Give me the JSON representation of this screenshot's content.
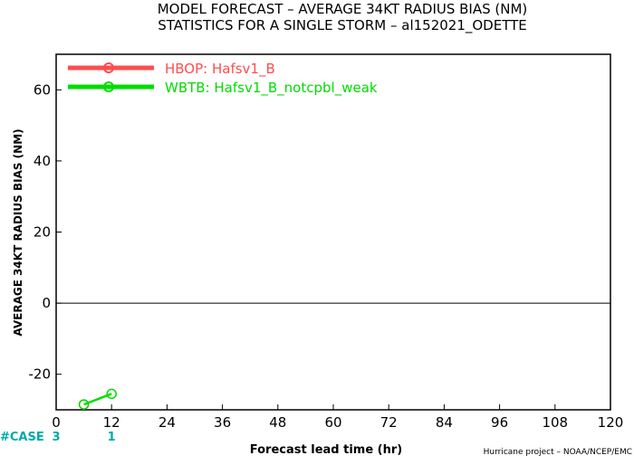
{
  "chart_data": {
    "type": "line",
    "title": "MODEL FORECAST – AVERAGE 34KT RADIUS BIAS (NM)",
    "subtitle": "STATISTICS FOR A SINGLE STORM – al152021_ODETTE",
    "xlabel": "Forecast lead time (hr)",
    "ylabel": "AVERAGE 34KT RADIUS BIAS (NM)",
    "xlim": [
      0,
      120
    ],
    "ylim": [
      -30,
      70
    ],
    "xticks": [
      0,
      12,
      24,
      36,
      48,
      60,
      72,
      84,
      96,
      108,
      120
    ],
    "yticks": [
      -20,
      0,
      20,
      40,
      60
    ],
    "zero_line": true,
    "legend_position": "top-left",
    "series": [
      {
        "name": "HBOP: Hafsv1_B",
        "color": "#ff4d4d",
        "x": [
          6
        ],
        "y": [
          -28.5
        ]
      },
      {
        "name": "WBTB: Hafsv1_B_notcpbl_weak",
        "color": "#00dd00",
        "x": [
          6,
          12
        ],
        "y": [
          -28.5,
          -25.5
        ]
      }
    ],
    "case_counts": {
      "label": "#CASE",
      "color": "#00aaaa",
      "entries": [
        {
          "x": 0,
          "count": "3"
        },
        {
          "x": 12,
          "count": "1"
        }
      ]
    },
    "credit": "Hurricane project – NOAA/NCEP/EMC"
  }
}
